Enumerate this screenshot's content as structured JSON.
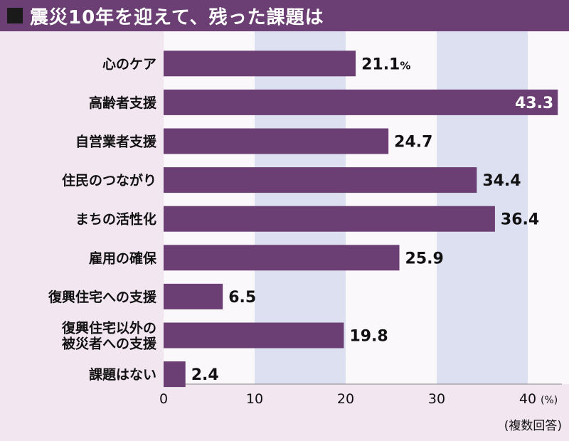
{
  "chart_data": {
    "type": "bar",
    "orientation": "horizontal",
    "title": "震災10年を迎えて、残った課題は",
    "categories": [
      "心のケア",
      "高齢者支援",
      "自営業者支援",
      "住民のつながり",
      "まちの活性化",
      "雇用の確保",
      "復興住宅への支援",
      "復興住宅以外の\n被災者への支援",
      "課題はない"
    ],
    "values": [
      21.1,
      43.3,
      24.7,
      34.4,
      36.4,
      25.9,
      6.5,
      19.8,
      2.4
    ],
    "value_labels": [
      "21.1",
      "43.3",
      "24.7",
      "34.4",
      "36.4",
      "25.9",
      "6.5",
      "19.8",
      "2.4"
    ],
    "first_value_unit": "%",
    "x_ticks": [
      0,
      10,
      20,
      30,
      40
    ],
    "x_unit": "(%)",
    "xlim": [
      0,
      43.3
    ],
    "footnote": "(複数回答)",
    "colors": {
      "bar": "#6b3f73",
      "band_light": "#fbf8fb",
      "band_shaded": "#dde0f0",
      "background": "#f2e6f1",
      "title_bg": "#6b3f73"
    }
  }
}
